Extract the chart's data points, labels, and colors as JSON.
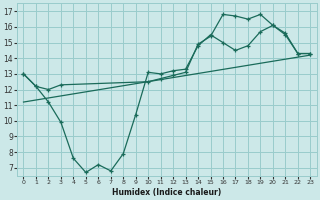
{
  "xlabel": "Humidex (Indice chaleur)",
  "bg_color": "#cce8e8",
  "grid_color": "#99cccc",
  "line_color": "#1a6b5a",
  "xlim": [
    -0.5,
    23.5
  ],
  "ylim": [
    6.5,
    17.5
  ],
  "xticks": [
    0,
    1,
    2,
    3,
    4,
    5,
    6,
    7,
    8,
    9,
    10,
    11,
    12,
    13,
    14,
    15,
    16,
    17,
    18,
    19,
    20,
    21,
    22,
    23
  ],
  "yticks": [
    7,
    8,
    9,
    10,
    11,
    12,
    13,
    14,
    15,
    16,
    17
  ],
  "line1_x": [
    0,
    1,
    2,
    3,
    4,
    5,
    6,
    7,
    8,
    9,
    10,
    11,
    12,
    13,
    14,
    15,
    16,
    17,
    18,
    19,
    20,
    21,
    22,
    23
  ],
  "line1_y": [
    13.0,
    12.2,
    11.2,
    9.9,
    7.6,
    6.7,
    7.2,
    6.8,
    7.9,
    10.4,
    13.1,
    13.0,
    13.2,
    13.3,
    14.8,
    15.5,
    15.0,
    14.5,
    14.8,
    15.7,
    16.1,
    15.6,
    14.3,
    14.3
  ],
  "line2_x": [
    0,
    1,
    2,
    3,
    10,
    11,
    12,
    13,
    14,
    15,
    16,
    17,
    18,
    19,
    20,
    21,
    22,
    23
  ],
  "line2_y": [
    13.0,
    12.2,
    12.0,
    12.3,
    12.5,
    12.7,
    12.9,
    13.1,
    14.9,
    15.4,
    16.8,
    16.7,
    16.5,
    16.8,
    16.1,
    15.5,
    14.3,
    14.3
  ],
  "line3_x": [
    0,
    23
  ],
  "line3_y": [
    11.2,
    14.2
  ]
}
